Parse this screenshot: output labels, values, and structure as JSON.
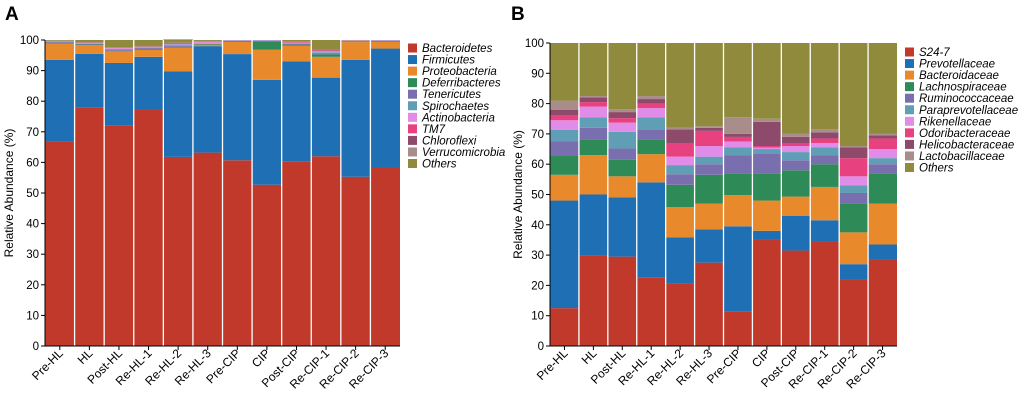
{
  "chart_data": [
    {
      "panel_label": "A",
      "type": "bar",
      "stacked": true,
      "title": "",
      "xlabel": "",
      "ylabel": "Relative Abundance (%)",
      "ylim": [
        0,
        100
      ],
      "yticks": [
        "0",
        "10",
        "20",
        "30",
        "40",
        "50",
        "60",
        "70",
        "80",
        "90",
        "100"
      ],
      "grid": false,
      "legend_position": "right",
      "categories": [
        "Pre-HL",
        "HL",
        "Post-HL",
        "Re-HL-1",
        "Re-HL-2",
        "Re-HL-3",
        "Pre-CIP",
        "CIP",
        "Post-CIP",
        "Re-CIP-1",
        "Re-CIP-2",
        "Re-CIP-3"
      ],
      "series": [
        {
          "name": "Bacteroidetes",
          "color": "#c0392b",
          "values": [
            66.7,
            78.0,
            72.0,
            77.3,
            61.8,
            63.2,
            60.7,
            52.7,
            60.2,
            62.0,
            55.3,
            58.5
          ]
        },
        {
          "name": "Firmicutes",
          "color": "#1f6fb4",
          "values": [
            26.8,
            17.5,
            20.5,
            17.2,
            27.9,
            34.8,
            34.7,
            34.3,
            32.8,
            25.7,
            38.2,
            38.7
          ]
        },
        {
          "name": "Proteobacteria",
          "color": "#e8892b",
          "values": [
            5.3,
            2.8,
            3.8,
            2.3,
            7.8,
            0.5,
            4.0,
            9.8,
            5.2,
            6.8,
            5.8,
            2.3
          ]
        },
        {
          "name": "Deferribacteres",
          "color": "#2e8b57",
          "values": [
            0.2,
            0.2,
            0.2,
            0.3,
            0.3,
            0.2,
            0.3,
            2.8,
            0.3,
            0.8,
            0.2,
            0.2
          ]
        },
        {
          "name": "Tenericutes",
          "color": "#7a6fae",
          "values": [
            0.3,
            0.3,
            0.3,
            0.3,
            0.3,
            0.1,
            0.1,
            0.2,
            0.2,
            0.4,
            0.1,
            0.1
          ]
        },
        {
          "name": "Spirochaetes",
          "color": "#5f9eb5",
          "values": [
            0.1,
            0.1,
            0.3,
            0.2,
            0.4,
            0.1,
            0.1,
            0.1,
            0.2,
            0.3,
            0.1,
            0.1
          ]
        },
        {
          "name": "Actinobacteria",
          "color": "#e08ce8",
          "values": [
            0.1,
            0.1,
            0.2,
            0.1,
            0.2,
            0.5,
            0.1,
            0.1,
            0.2,
            0.3,
            0.1,
            0.1
          ]
        },
        {
          "name": "TM7",
          "color": "#e8417f",
          "values": [
            0.1,
            0.1,
            0.2,
            0.1,
            0.2,
            0.1,
            0.0,
            0.0,
            0.2,
            0.3,
            0.1,
            0.0
          ]
        },
        {
          "name": "Chloroflexi",
          "color": "#8e4a6a",
          "values": [
            0.1,
            0.1,
            0.1,
            0.1,
            0.1,
            0.1,
            0.0,
            0.0,
            0.1,
            0.1,
            0.0,
            0.0
          ]
        },
        {
          "name": "Verrucomicrobia",
          "color": "#a98d8b",
          "values": [
            0.1,
            0.1,
            0.1,
            0.1,
            0.2,
            0.1,
            0.0,
            0.0,
            0.1,
            0.2,
            0.0,
            0.0
          ]
        },
        {
          "name": "Others",
          "color": "#8f8a3c",
          "values": [
            0.2,
            0.7,
            2.3,
            2.0,
            1.0,
            0.3,
            0.0,
            0.0,
            0.5,
            3.1,
            0.1,
            0.0
          ]
        }
      ]
    },
    {
      "panel_label": "B",
      "type": "bar",
      "stacked": true,
      "title": "",
      "xlabel": "",
      "ylabel": "Relative Abundance (%)",
      "ylim": [
        0,
        100
      ],
      "yticks": [
        "0",
        "10",
        "20",
        "30",
        "40",
        "50",
        "60",
        "70",
        "80",
        "90",
        "100"
      ],
      "grid": false,
      "legend_position": "right",
      "categories": [
        "Pre-HL",
        "HL",
        "Post-HL",
        "Re-HL-1",
        "Re-HL-2",
        "Re-HL-3",
        "Pre-CIP",
        "CIP",
        "Post-CIP",
        "Re-CIP-1",
        "Re-CIP-2",
        "Re-CIP-3"
      ],
      "series": [
        {
          "name": "S24-7",
          "color": "#c0392b",
          "values": [
            12.5,
            30.0,
            29.5,
            22.7,
            20.5,
            27.5,
            11.5,
            35.0,
            31.5,
            34.5,
            21.8,
            28.7
          ]
        },
        {
          "name": "Prevotellaceae",
          "color": "#1f6fb4",
          "values": [
            35.5,
            20.0,
            19.5,
            31.3,
            15.3,
            11.0,
            28.0,
            3.0,
            11.5,
            7.0,
            5.2,
            4.8
          ]
        },
        {
          "name": "Bacteroidaceae",
          "color": "#e8892b",
          "values": [
            8.5,
            13.0,
            7.0,
            9.3,
            10.0,
            8.5,
            10.3,
            10.0,
            6.3,
            11.0,
            10.5,
            13.5
          ]
        },
        {
          "name": "Lachnospiraceae",
          "color": "#2e8b57",
          "values": [
            6.5,
            5.0,
            5.5,
            4.7,
            7.4,
            9.5,
            7.2,
            9.0,
            8.7,
            7.5,
            9.5,
            10.0
          ]
        },
        {
          "name": "Ruminococcaceae",
          "color": "#7a6fae",
          "values": [
            4.5,
            4.0,
            3.7,
            3.5,
            3.5,
            3.5,
            6.0,
            6.5,
            3.3,
            3.0,
            3.5,
            3.0
          ]
        },
        {
          "name": "Paraprevotellaceae",
          "color": "#5f9eb5",
          "values": [
            3.8,
            3.5,
            5.5,
            4.0,
            3.0,
            2.5,
            2.5,
            1.5,
            2.7,
            2.5,
            2.5,
            2.0
          ]
        },
        {
          "name": "Rikenellaceae",
          "color": "#e08ce8",
          "values": [
            3.2,
            3.5,
            3.0,
            3.0,
            2.8,
            3.5,
            2.0,
            0.5,
            2.0,
            1.5,
            3.0,
            3.0
          ]
        },
        {
          "name": "Odoribacteraceae",
          "color": "#e8417f",
          "values": [
            1.5,
            1.5,
            1.5,
            1.5,
            4.5,
            5.0,
            1.5,
            0.5,
            1.0,
            1.5,
            6.0,
            3.5
          ]
        },
        {
          "name": "Helicobacteraceae",
          "color": "#8e4a6a",
          "values": [
            2.0,
            1.5,
            2.0,
            1.5,
            4.5,
            1.0,
            1.0,
            8.0,
            2.0,
            2.0,
            3.5,
            1.0
          ]
        },
        {
          "name": "Lactobacillaceae",
          "color": "#a98d8b",
          "values": [
            3.0,
            0.5,
            1.0,
            1.0,
            0.5,
            0.5,
            5.5,
            1.0,
            1.0,
            1.0,
            0.5,
            0.5
          ]
        },
        {
          "name": "Others",
          "color": "#8f8a3c",
          "values": [
            19.0,
            17.5,
            21.8,
            17.5,
            28.0,
            27.5,
            24.5,
            25.0,
            30.0,
            28.5,
            34.0,
            30.0
          ]
        }
      ]
    }
  ]
}
